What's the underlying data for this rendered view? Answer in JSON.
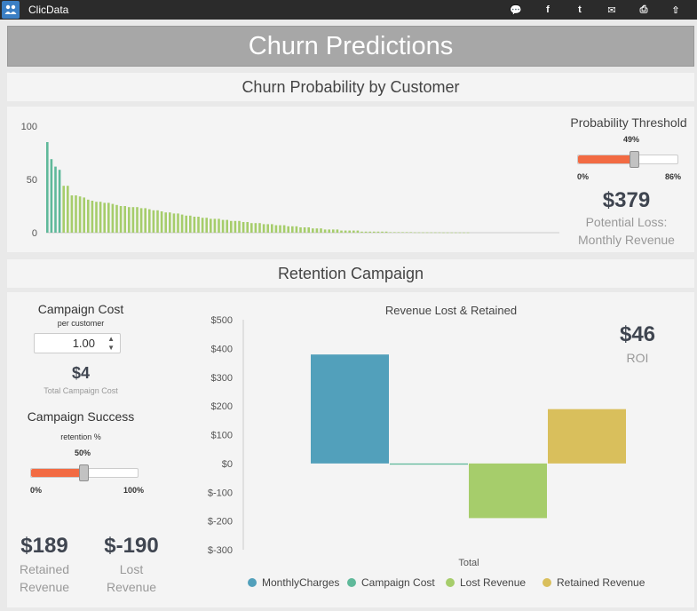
{
  "app": {
    "name": "ClicData",
    "logo_icon": "users-icon"
  },
  "topbar": {
    "icons": [
      "comment-icon",
      "facebook-icon",
      "twitter-icon",
      "mail-icon",
      "print-icon",
      "export-icon"
    ],
    "glyphs": [
      "&#128172;",
      "f",
      "t",
      "&#9993;",
      "&#9113;",
      "&#8679;"
    ]
  },
  "page_title": "Churn Predictions",
  "churn_section": {
    "heading": "Churn Probability by Customer",
    "threshold": {
      "title": "Probability Threshold",
      "value_label": "49%",
      "value": 49,
      "min_label": "0%",
      "max_label": "86%",
      "min": 0,
      "max": 86
    },
    "loss_value": "$379",
    "loss_label_1": "Potential Loss:",
    "loss_label_2": "Monthly Revenue"
  },
  "retention_section": {
    "heading": "Retention Campaign",
    "campaign_cost": {
      "title": "Campaign Cost",
      "subtitle": "per customer",
      "input_value": "1.00",
      "total_value": "$4",
      "total_label": "Total Campaign Cost"
    },
    "campaign_success": {
      "title": "Campaign Success",
      "subtitle": "retention %",
      "value_label": "50%",
      "value": 50,
      "min_label": "0%",
      "max_label": "100%",
      "min": 0,
      "max": 100
    },
    "retained": {
      "value": "$189",
      "label_1": "Retained",
      "label_2": "Revenue"
    },
    "lost": {
      "value": "$-190",
      "label_1": "Lost",
      "label_2": "Revenue"
    },
    "roi": {
      "value": "$46",
      "label": "ROI"
    }
  },
  "colors": {
    "churn_high": "#5fb99a",
    "churn_low": "#a6cd6b",
    "monthly_charges": "#52a0bb",
    "campaign_cost": "#5fb99a",
    "lost_revenue": "#a6cd6b",
    "retained_revenue": "#d9bf5c",
    "slider_fill": "#f26b43"
  },
  "chart_data": [
    {
      "type": "bar",
      "title": "",
      "ylim": [
        0,
        100
      ],
      "yticks": [
        "100",
        "50",
        "0"
      ],
      "yticks_values": [
        100,
        50,
        0
      ],
      "threshold": 49,
      "values": [
        85,
        69,
        62,
        59,
        44,
        44,
        35,
        35,
        34,
        33,
        31,
        30,
        29,
        29,
        28,
        28,
        27,
        26,
        25,
        25,
        24,
        24,
        24,
        23,
        23,
        22,
        21,
        21,
        20,
        19,
        19,
        18,
        18,
        17,
        16,
        16,
        15,
        15,
        14,
        14,
        13,
        13,
        13,
        12,
        12,
        11,
        11,
        11,
        10,
        10,
        9,
        9,
        9,
        8,
        8,
        8,
        7,
        7,
        7,
        6,
        6,
        6,
        5,
        5,
        5,
        4,
        4,
        4,
        3,
        3,
        3,
        3,
        2,
        2,
        2,
        2,
        2,
        1,
        1,
        1,
        1,
        1,
        1,
        1,
        0.5,
        0.5,
        0.5,
        0.5,
        0.5,
        0.5,
        0.3,
        0.3,
        0.3,
        0.3,
        0.3,
        0.3,
        0.3,
        0.2,
        0.2,
        0.2,
        0.2,
        0.2,
        0.2,
        0.2
      ]
    },
    {
      "type": "bar",
      "title": "Revenue Lost & Retained",
      "xlabel": "Total",
      "categories": [
        "Total"
      ],
      "ylim": [
        -300,
        500
      ],
      "yticks": [
        "$500",
        "$400",
        "$300",
        "$200",
        "$100",
        "$0",
        "$-100",
        "$-200",
        "$-300"
      ],
      "yticks_values": [
        500,
        400,
        300,
        200,
        100,
        0,
        -100,
        -200,
        -300
      ],
      "series": [
        {
          "name": "MonthlyCharges",
          "values": [
            379
          ]
        },
        {
          "name": "Campaign Cost",
          "values": [
            -4
          ]
        },
        {
          "name": "Lost Revenue",
          "values": [
            -190
          ]
        },
        {
          "name": "Retained Revenue",
          "values": [
            189
          ]
        }
      ]
    }
  ]
}
